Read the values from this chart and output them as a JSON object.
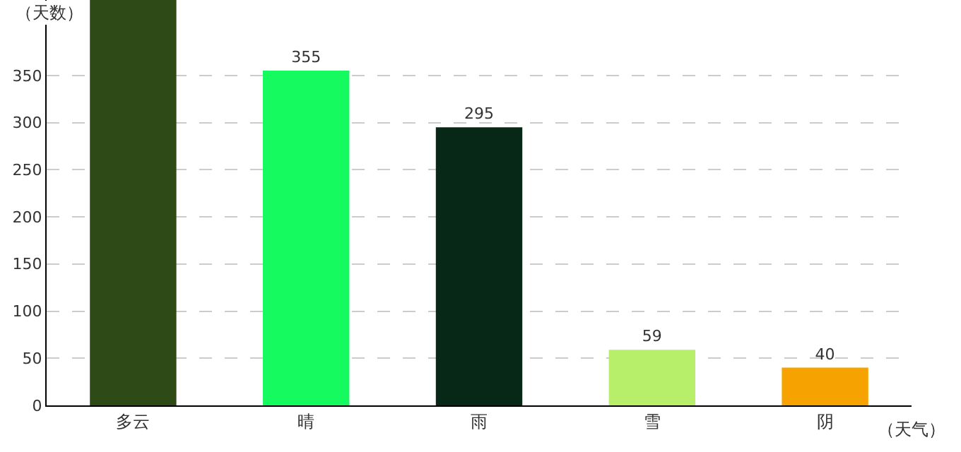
{
  "chart_data": {
    "type": "bar",
    "xlabel": "（天气）",
    "ylabel": "（天数）",
    "categories": [
      "多云",
      "晴",
      "雨",
      "雪",
      "阴"
    ],
    "values": [
      430,
      355,
      295,
      59,
      40
    ],
    "colors": [
      "#2d4a17",
      "#14fa5f",
      "#072817",
      "#b7ee6a",
      "#f6a200"
    ],
    "value_labels": [
      null,
      "355",
      "295",
      "59",
      "40"
    ],
    "ylim": [
      0,
      430
    ],
    "yticks": [
      0,
      50,
      100,
      150,
      200,
      250,
      300,
      350
    ],
    "grid": "y",
    "legend": false
  }
}
